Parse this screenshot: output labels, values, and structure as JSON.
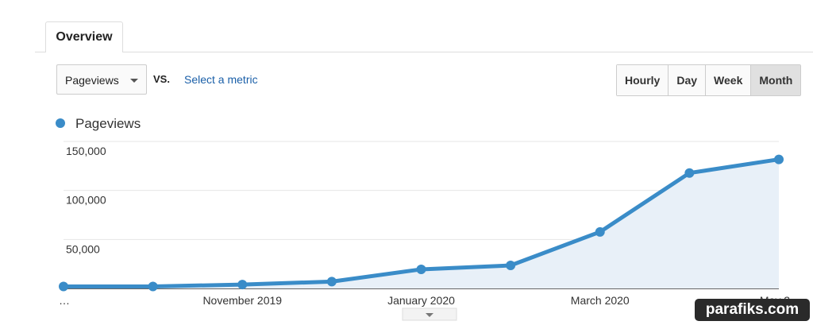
{
  "ui": {
    "tab": "Overview",
    "metric_dropdown": "Pageviews",
    "vs": "VS.",
    "select_metric": "Select a metric",
    "buttons": [
      "Hourly",
      "Day",
      "Week",
      "Month"
    ],
    "active_button": 3,
    "watermark": "parafiks.com"
  },
  "chart_data": {
    "type": "area",
    "categories": [
      "…",
      null,
      "November 2019",
      null,
      "January 2020",
      null,
      "March 2020",
      null,
      "May 2…"
    ],
    "series": [
      {
        "name": "Pageviews",
        "color": "#3a8cc8",
        "values": [
          2000,
          2000,
          4000,
          7000,
          19500,
          23500,
          57700,
          117800,
          131700
        ]
      }
    ],
    "ylim": [
      0,
      150000
    ],
    "yticks": [
      {
        "value": 50000,
        "label": "50,000"
      },
      {
        "value": 100000,
        "label": "100,000"
      },
      {
        "value": 150000,
        "label": "150,000"
      }
    ],
    "grid": true
  }
}
